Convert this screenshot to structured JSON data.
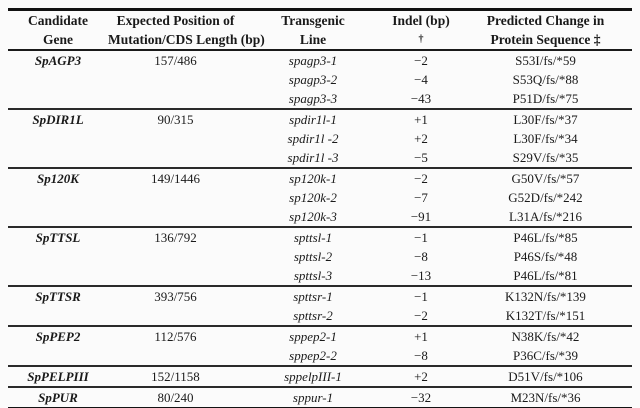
{
  "colors": {
    "background": "#fbfbfb",
    "text": "#1a1a1a",
    "rule_heavy": "#121212",
    "rule_light": "#2a2a2a"
  },
  "table": {
    "columns": [
      {
        "line1": "Candidate",
        "line2": "Gene"
      },
      {
        "line1": "Expected Position of",
        "line2": "Mutation/CDS Length (bp)"
      },
      {
        "line1": "Transgenic",
        "line2": "Line"
      },
      {
        "line1": "Indel (bp)",
        "line2": "†"
      },
      {
        "line1": "Predicted Change in",
        "line2": "Protein Sequence ‡"
      }
    ],
    "groups": [
      {
        "gene": "SpAGP3",
        "position": "157/486",
        "lines": [
          {
            "line": "spagp3-1",
            "indel": "−2",
            "change": "S53I/fs/*59"
          },
          {
            "line": "spagp3-2",
            "indel": "−4",
            "change": "S53Q/fs/*88"
          },
          {
            "line": "spagp3-3",
            "indel": "−43",
            "change": "P51D/fs/*75"
          }
        ]
      },
      {
        "gene": "SpDIR1L",
        "position": "90/315",
        "lines": [
          {
            "line": "spdir1l-1",
            "indel": "+1",
            "change": "L30F/fs/*37"
          },
          {
            "line": "spdir1l -2",
            "indel": "+2",
            "change": "L30F/fs/*34"
          },
          {
            "line": "spdir1l -3",
            "indel": "−5",
            "change": "S29V/fs/*35"
          }
        ]
      },
      {
        "gene": "Sp120K",
        "position": "149/1446",
        "lines": [
          {
            "line": "sp120k-1",
            "indel": "−2",
            "change": "G50V/fs/*57"
          },
          {
            "line": "sp120k-2",
            "indel": "−7",
            "change": "G52D/fs/*242"
          },
          {
            "line": "sp120k-3",
            "indel": "−91",
            "change": "L31A/fs/*216"
          }
        ]
      },
      {
        "gene": "SpTTSL",
        "position": "136/792",
        "lines": [
          {
            "line": "spttsl-1",
            "indel": "−1",
            "change": "P46L/fs/*85"
          },
          {
            "line": "spttsl-2",
            "indel": "−8",
            "change": "P46S/fs/*48"
          },
          {
            "line": "spttsl-3",
            "indel": "−13",
            "change": "P46L/fs/*81"
          }
        ]
      },
      {
        "gene": "SpTTSR",
        "position": "393/756",
        "lines": [
          {
            "line": "spttsr-1",
            "indel": "−1",
            "change": "K132N/fs/*139"
          },
          {
            "line": "spttsr-2",
            "indel": "−2",
            "change": "K132T/fs/*151"
          }
        ]
      },
      {
        "gene": "SpPEP2",
        "position": "112/576",
        "lines": [
          {
            "line": "sppep2-1",
            "indel": "+1",
            "change": "N38K/fs/*42"
          },
          {
            "line": "sppep2-2",
            "indel": "−8",
            "change": "P36C/fs/*39"
          }
        ]
      },
      {
        "gene": "SpPELPIII",
        "position": "152/1158",
        "lines": [
          {
            "line": "sppelpIII-1",
            "indel": "+2",
            "change": "D51V/fs/*106"
          }
        ]
      },
      {
        "gene": "SpPUR",
        "position": "80/240",
        "lines": [
          {
            "line": "sppur-1",
            "indel": "−32",
            "change": "M23N/fs/*36"
          }
        ]
      }
    ]
  }
}
